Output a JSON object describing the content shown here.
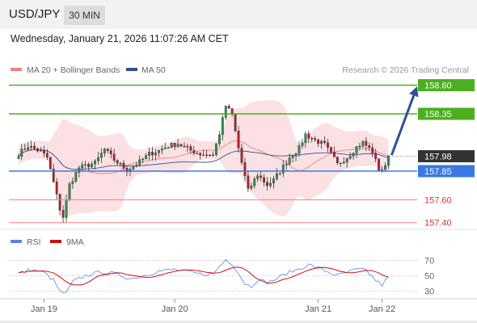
{
  "header": {
    "pair": "USD/JPY",
    "timeframe": "30 MIN",
    "datetime": "Wednesday, January 21, 2026 11:07:26 AM CET"
  },
  "colors": {
    "candle_up": "#2f8f4e",
    "candle_down": "#b51f27",
    "bollinger": "#f7c8cc",
    "ma20": "#f08080",
    "ma50": "#2d5296",
    "resistance": "#4caf1f",
    "pivot": "#3a7ae0",
    "support": "#f08080",
    "current": "#333333",
    "rsi": "#5b83e0",
    "rsi_ma": "#cc1111",
    "arrow": "#2d5296"
  },
  "chart_data": [
    {
      "type": "candlestick",
      "legend": [
        {
          "name": "MA 20 + Bollinger Bands",
          "color": "#f08080"
        },
        {
          "name": "MA 50",
          "color": "#2d5296"
        }
      ],
      "legend_position": "top-left",
      "credit": "Research © 2026 Trading Central",
      "ylim": [
        157.37,
        158.66
      ],
      "x_ticks": [
        {
          "label": "Jan 19",
          "x": 8
        },
        {
          "label": "Jan 20",
          "x": 49
        },
        {
          "label": "Jan 21",
          "x": 94
        },
        {
          "label": "Jan 22",
          "x": 114
        }
      ],
      "x_range": [
        -3,
        124
      ],
      "levels": [
        {
          "value": 158.6,
          "label": "158.60",
          "kind": "resistance",
          "style": "tag"
        },
        {
          "value": 158.35,
          "label": "158.35",
          "kind": "resistance",
          "style": "tag"
        },
        {
          "value": 157.98,
          "label": "157.98",
          "kind": "current",
          "style": "tag"
        },
        {
          "value": 157.85,
          "label": "157.85",
          "kind": "pivot",
          "style": "tag"
        },
        {
          "value": 157.6,
          "label": "157.60",
          "kind": "support",
          "style": "text"
        },
        {
          "value": 157.4,
          "label": "157.40",
          "kind": "support",
          "style": "text"
        }
      ],
      "arrow": {
        "from": [
          117,
          157.99
        ],
        "to": [
          125,
          158.59
        ]
      },
      "key_points": [
        {
          "x": 0,
          "y": 158.0
        },
        {
          "x": 3,
          "y": 158.07
        },
        {
          "x": 7,
          "y": 158.02
        },
        {
          "x": 9,
          "y": 157.97
        },
        {
          "x": 11,
          "y": 157.75
        },
        {
          "x": 13,
          "y": 157.52
        },
        {
          "x": 14,
          "y": 157.45
        },
        {
          "x": 16,
          "y": 157.73
        },
        {
          "x": 19,
          "y": 157.88
        },
        {
          "x": 24,
          "y": 157.92
        },
        {
          "x": 27,
          "y": 158.04
        },
        {
          "x": 30,
          "y": 157.95
        },
        {
          "x": 34,
          "y": 157.86
        },
        {
          "x": 38,
          "y": 157.93
        },
        {
          "x": 41,
          "y": 158.0
        },
        {
          "x": 44,
          "y": 158.03
        },
        {
          "x": 47,
          "y": 158.07
        },
        {
          "x": 50,
          "y": 158.09
        },
        {
          "x": 54,
          "y": 158.03
        },
        {
          "x": 57,
          "y": 158.0
        },
        {
          "x": 61,
          "y": 157.99
        },
        {
          "x": 63,
          "y": 158.18
        },
        {
          "x": 65,
          "y": 158.42
        },
        {
          "x": 67,
          "y": 158.34
        },
        {
          "x": 69,
          "y": 158.05
        },
        {
          "x": 71,
          "y": 157.8
        },
        {
          "x": 72,
          "y": 157.68
        },
        {
          "x": 75,
          "y": 157.82
        },
        {
          "x": 78,
          "y": 157.73
        },
        {
          "x": 80,
          "y": 157.77
        },
        {
          "x": 82,
          "y": 157.85
        },
        {
          "x": 85,
          "y": 157.97
        },
        {
          "x": 88,
          "y": 158.05
        },
        {
          "x": 90,
          "y": 158.17
        },
        {
          "x": 93,
          "y": 158.12
        },
        {
          "x": 96,
          "y": 158.08
        },
        {
          "x": 98,
          "y": 158.0
        },
        {
          "x": 100,
          "y": 157.91
        },
        {
          "x": 103,
          "y": 157.97
        },
        {
          "x": 106,
          "y": 158.06
        },
        {
          "x": 108,
          "y": 158.1
        },
        {
          "x": 111,
          "y": 158.02
        },
        {
          "x": 113,
          "y": 157.86
        },
        {
          "x": 115,
          "y": 157.88
        },
        {
          "x": 116,
          "y": 157.98
        }
      ]
    },
    {
      "type": "line",
      "legend": [
        {
          "name": "RSI",
          "color": "#5b83e0"
        },
        {
          "name": "9MA",
          "color": "#cc1111"
        }
      ],
      "ylim": [
        22,
        82
      ],
      "y_ticks": [
        70,
        50,
        30
      ],
      "key_points": [
        {
          "x": 0,
          "y": 53
        },
        {
          "x": 4,
          "y": 58
        },
        {
          "x": 8,
          "y": 54
        },
        {
          "x": 11,
          "y": 44
        },
        {
          "x": 13,
          "y": 29
        },
        {
          "x": 15,
          "y": 27
        },
        {
          "x": 17,
          "y": 42
        },
        {
          "x": 21,
          "y": 50
        },
        {
          "x": 26,
          "y": 55
        },
        {
          "x": 31,
          "y": 52
        },
        {
          "x": 35,
          "y": 46
        },
        {
          "x": 39,
          "y": 50
        },
        {
          "x": 44,
          "y": 56
        },
        {
          "x": 49,
          "y": 58
        },
        {
          "x": 53,
          "y": 55
        },
        {
          "x": 57,
          "y": 52
        },
        {
          "x": 61,
          "y": 52
        },
        {
          "x": 63,
          "y": 62
        },
        {
          "x": 65,
          "y": 71
        },
        {
          "x": 67,
          "y": 66
        },
        {
          "x": 69,
          "y": 53
        },
        {
          "x": 71,
          "y": 40
        },
        {
          "x": 73,
          "y": 36
        },
        {
          "x": 75,
          "y": 45
        },
        {
          "x": 78,
          "y": 41
        },
        {
          "x": 81,
          "y": 46
        },
        {
          "x": 84,
          "y": 53
        },
        {
          "x": 88,
          "y": 59
        },
        {
          "x": 91,
          "y": 64
        },
        {
          "x": 94,
          "y": 60
        },
        {
          "x": 97,
          "y": 55
        },
        {
          "x": 100,
          "y": 50
        },
        {
          "x": 103,
          "y": 54
        },
        {
          "x": 106,
          "y": 58
        },
        {
          "x": 109,
          "y": 57
        },
        {
          "x": 112,
          "y": 44
        },
        {
          "x": 114,
          "y": 38
        },
        {
          "x": 116,
          "y": 48
        }
      ]
    }
  ]
}
